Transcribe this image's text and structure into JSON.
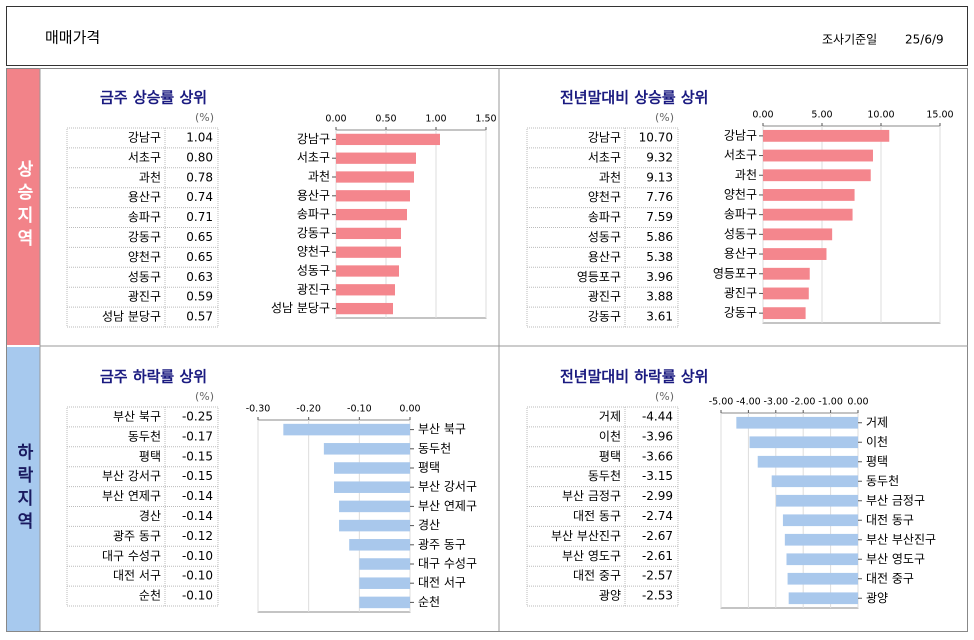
{
  "header": {
    "title": "매매가격",
    "date_label": "조사기준일",
    "date": "25/6/9"
  },
  "sections": [
    "상승지역",
    "하락지역"
  ],
  "chart_data": [
    {
      "type": "bar",
      "orientation": "horizontal",
      "title": "금주 상승률 상위",
      "unit": "(%)",
      "color": "#f4868d",
      "categories": [
        "강남구",
        "서초구",
        "과천",
        "용산구",
        "송파구",
        "강동구",
        "양천구",
        "성동구",
        "광진구",
        "성남 분당구"
      ],
      "values": [
        1.04,
        0.8,
        0.78,
        0.74,
        0.71,
        0.65,
        0.65,
        0.63,
        0.59,
        0.57
      ],
      "value_labels": [
        "1.04",
        "0.80",
        "0.78",
        "0.74",
        "0.71",
        "0.65",
        "0.65",
        "0.63",
        "0.59",
        "0.57"
      ],
      "xlim": [
        0,
        1.5
      ],
      "xticks": [
        {
          "value": 0,
          "label": "0.00"
        },
        {
          "value": 0.5,
          "label": "0.50"
        },
        {
          "value": 1,
          "label": "1.00"
        },
        {
          "value": 1.5,
          "label": "1.50"
        }
      ]
    },
    {
      "type": "bar",
      "orientation": "horizontal",
      "title": "전년말대비 상승률 상위",
      "unit": "(%)",
      "color": "#f4868d",
      "categories": [
        "강남구",
        "서초구",
        "과천",
        "양천구",
        "송파구",
        "성동구",
        "용산구",
        "영등포구",
        "광진구",
        "강동구"
      ],
      "values": [
        10.7,
        9.32,
        9.13,
        7.76,
        7.59,
        5.86,
        5.38,
        3.96,
        3.88,
        3.61
      ],
      "value_labels": [
        "10.70",
        "9.32",
        "9.13",
        "7.76",
        "7.59",
        "5.86",
        "5.38",
        "3.96",
        "3.88",
        "3.61"
      ],
      "xlim": [
        0,
        15
      ],
      "xticks": [
        {
          "value": 0,
          "label": "0.00"
        },
        {
          "value": 5,
          "label": "5.00"
        },
        {
          "value": 10,
          "label": "10.00"
        },
        {
          "value": 15,
          "label": "15.00"
        }
      ]
    },
    {
      "type": "bar",
      "orientation": "horizontal",
      "title": "금주 하락률 상위",
      "unit": "(%)",
      "color": "#a9c8ec",
      "categories": [
        "부산 북구",
        "동두천",
        "평택",
        "부산 강서구",
        "부산 연제구",
        "경산",
        "광주 동구",
        "대구 수성구",
        "대전 서구",
        "순천"
      ],
      "values": [
        -0.25,
        -0.17,
        -0.15,
        -0.15,
        -0.14,
        -0.14,
        -0.12,
        -0.1,
        -0.1,
        -0.1
      ],
      "value_labels": [
        "-0.25",
        "-0.17",
        "-0.15",
        "-0.15",
        "-0.14",
        "-0.14",
        "-0.12",
        "-0.10",
        "-0.10",
        "-0.10"
      ],
      "xlim": [
        -0.3,
        0
      ],
      "xticks": [
        {
          "value": -0.3,
          "label": "-0.30"
        },
        {
          "value": -0.2,
          "label": "-0.20"
        },
        {
          "value": -0.1,
          "label": "-0.10"
        },
        {
          "value": 0,
          "label": "0.00"
        }
      ]
    },
    {
      "type": "bar",
      "orientation": "horizontal",
      "title": "전년말대비 하락률 상위",
      "unit": "(%)",
      "color": "#a9c8ec",
      "categories": [
        "거제",
        "이천",
        "평택",
        "동두천",
        "부산 금정구",
        "대전 동구",
        "부산 부산진구",
        "부산 영도구",
        "대전 중구",
        "광양"
      ],
      "values": [
        -4.44,
        -3.96,
        -3.66,
        -3.15,
        -2.99,
        -2.74,
        -2.67,
        -2.61,
        -2.57,
        -2.53
      ],
      "value_labels": [
        "-4.44",
        "-3.96",
        "-3.66",
        "-3.15",
        "-2.99",
        "-2.74",
        "-2.67",
        "-2.61",
        "-2.57",
        "-2.53"
      ],
      "xlim": [
        -5,
        0
      ],
      "xticks": [
        {
          "value": -5,
          "label": "-5.00"
        },
        {
          "value": -4,
          "label": "-4.00"
        },
        {
          "value": -3,
          "label": "-3.00"
        },
        {
          "value": -2,
          "label": "-2.00"
        },
        {
          "value": -1,
          "label": "-1.00"
        },
        {
          "value": 0,
          "label": "0.00"
        }
      ]
    }
  ]
}
